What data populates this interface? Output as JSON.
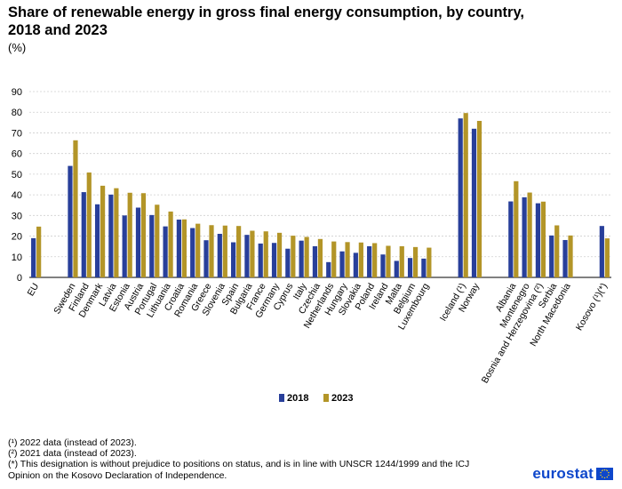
{
  "header": {
    "title": "Share of renewable energy in gross final energy consumption, by country, 2018 and 2023",
    "unit": "(%)"
  },
  "chart_data": {
    "type": "bar",
    "title": "Share of renewable energy in gross final energy consumption, by country, 2018 and 2023",
    "ylabel": "(%)",
    "xlabel": "",
    "ylim": [
      0,
      90
    ],
    "yticks": [
      0,
      10,
      20,
      30,
      40,
      50,
      60,
      70,
      80,
      90
    ],
    "grid": true,
    "legend": "bottom-center",
    "groups": [
      {
        "categories": [
          "EU"
        ]
      },
      {
        "categories": [
          "Sweden",
          "Finland",
          "Denmark",
          "Latvia",
          "Estonia",
          "Austria",
          "Portugal",
          "Lithuania",
          "Croatia",
          "Romania",
          "Greece",
          "Slovenia",
          "Spain",
          "Bulgaria",
          "France",
          "Germany",
          "Cyprus",
          "Italy",
          "Czechia",
          "Netherlands",
          "Hungary",
          "Slovakia",
          "Poland",
          "Ireland",
          "Malta",
          "Belgium",
          "Luxembourg"
        ]
      },
      {
        "categories": [
          "Iceland (¹)",
          "Norway"
        ]
      },
      {
        "categories": [
          "Albania",
          "Montenegro",
          "Bosnia and Herzegovina (²)",
          "Serbia",
          "North Macedonia"
        ]
      },
      {
        "categories": [
          "Kosovo (¹)(*)"
        ]
      }
    ],
    "categories": [
      "EU",
      "Sweden",
      "Finland",
      "Denmark",
      "Latvia",
      "Estonia",
      "Austria",
      "Portugal",
      "Lithuania",
      "Croatia",
      "Romania",
      "Greece",
      "Slovenia",
      "Spain",
      "Bulgaria",
      "France",
      "Germany",
      "Cyprus",
      "Italy",
      "Czechia",
      "Netherlands",
      "Hungary",
      "Slovakia",
      "Poland",
      "Ireland",
      "Malta",
      "Belgium",
      "Luxembourg",
      "Iceland (¹)",
      "Norway",
      "Albania",
      "Montenegro",
      "Bosnia and Herzegovina (²)",
      "Serbia",
      "North Macedonia",
      "Kosovo (¹)(*)"
    ],
    "series": [
      {
        "name": "2018",
        "color": "#283f9a",
        "values": [
          19.0,
          54.0,
          41.3,
          35.4,
          40.1,
          30.0,
          33.8,
          30.2,
          24.7,
          28.0,
          23.9,
          18.0,
          21.1,
          17.0,
          20.6,
          16.4,
          16.7,
          13.9,
          17.8,
          15.1,
          7.4,
          12.6,
          11.9,
          15.1,
          11.1,
          8.0,
          9.4,
          9.1,
          77.0,
          72.0,
          36.8,
          38.8,
          35.9,
          20.3,
          18.1,
          24.9
        ]
      },
      {
        "name": "2023",
        "color": "#b39528",
        "values": [
          24.6,
          66.4,
          50.8,
          44.4,
          43.2,
          41.0,
          40.8,
          35.2,
          31.9,
          28.1,
          26.0,
          25.3,
          25.1,
          24.9,
          22.6,
          22.3,
          21.6,
          20.2,
          19.6,
          18.6,
          17.4,
          17.1,
          16.9,
          16.6,
          15.3,
          15.1,
          14.7,
          14.4,
          79.6,
          75.8,
          46.6,
          41.1,
          36.7,
          25.2,
          20.3,
          18.9
        ]
      }
    ]
  },
  "legend": {
    "items": [
      {
        "label": "2018",
        "color": "#283f9a"
      },
      {
        "label": "2023",
        "color": "#b39528"
      }
    ]
  },
  "footnotes": [
    "(¹) 2022 data (instead of 2023).",
    "(²) 2021 data (instead of 2023).",
    "(*) This designation is without prejudice to positions on status, and is in line with UNSCR 1244/1999 and the ICJ",
    "Opinion on the Kosovo Declaration of Independence."
  ],
  "branding": {
    "logo_text": "eurostat",
    "logo_color": "#0e47cb",
    "flag_icon": "eu-flag-icon"
  }
}
